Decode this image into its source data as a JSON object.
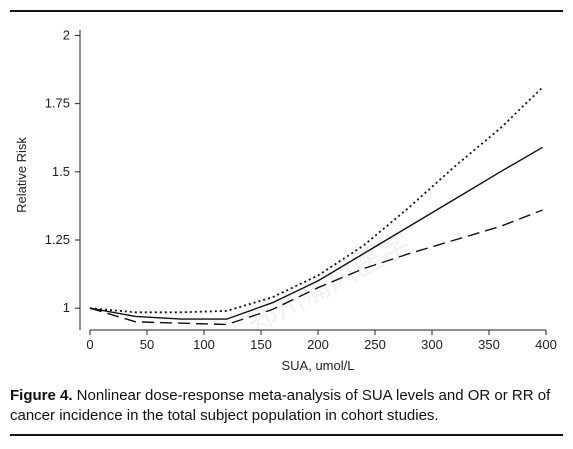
{
  "chart_data": {
    "type": "line",
    "xlabel": "SUA, umol/L",
    "ylabel": "Relative Risk",
    "xlim": [
      0,
      400
    ],
    "ylim": [
      0.92,
      2.02
    ],
    "xticks": [
      0,
      50,
      100,
      150,
      200,
      250,
      300,
      350,
      400
    ],
    "yticks": [
      1,
      1.25,
      1.5,
      1.75,
      2
    ],
    "ytick_labels": [
      "1",
      "1.25",
      "1.5",
      "1.75",
      "2"
    ],
    "grid": false,
    "series": [
      {
        "style": "solid",
        "x": [
          0,
          40,
          80,
          120,
          160,
          200,
          240,
          280,
          320,
          360,
          397
        ],
        "y": [
          1.0,
          0.97,
          0.96,
          0.96,
          1.02,
          1.1,
          1.2,
          1.3,
          1.4,
          1.5,
          1.59
        ]
      },
      {
        "style": "dotted",
        "x": [
          0,
          40,
          80,
          120,
          160,
          200,
          240,
          280,
          320,
          360,
          397
        ],
        "y": [
          1.0,
          0.985,
          0.985,
          0.99,
          1.04,
          1.12,
          1.23,
          1.37,
          1.52,
          1.66,
          1.81
        ]
      },
      {
        "style": "dashed",
        "x": [
          0,
          40,
          80,
          120,
          160,
          200,
          240,
          280,
          320,
          360,
          397
        ],
        "y": [
          1.0,
          0.95,
          0.945,
          0.94,
          0.995,
          1.075,
          1.145,
          1.2,
          1.25,
          1.3,
          1.36
        ]
      }
    ]
  },
  "caption": {
    "label": "Figure 4.",
    "text": " Nonlinear dose-response meta-analysis of SUA levels and OR or RR of cancer incidence in the total subject population in cohort studies."
  },
  "watermark": "郑州痛风医学"
}
